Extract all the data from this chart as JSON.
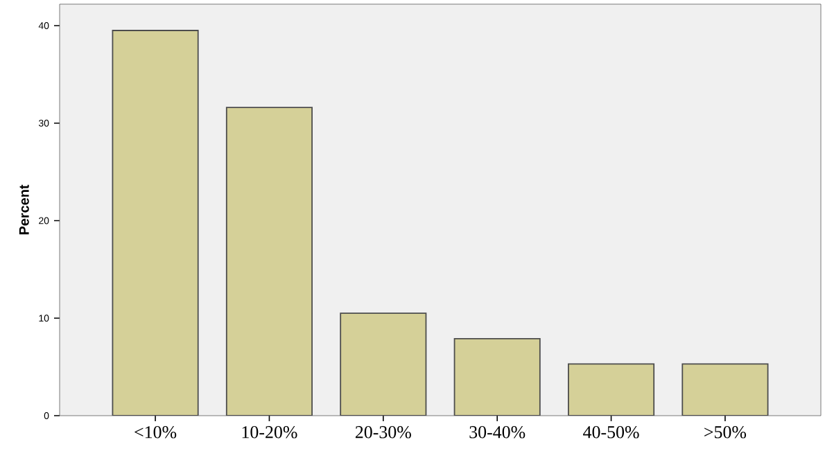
{
  "chart_data": {
    "type": "bar",
    "ylabel": "Percent",
    "categories": [
      "<10%",
      "10-20%",
      "20-30%",
      "30-40%",
      "40-50%",
      ">50%"
    ],
    "values": [
      39.5,
      31.6,
      10.5,
      7.9,
      5.3,
      5.3
    ],
    "color": "#d5d098",
    "ylim": [
      0,
      42.2
    ],
    "yticks": [
      0,
      10,
      20,
      30,
      40
    ]
  }
}
